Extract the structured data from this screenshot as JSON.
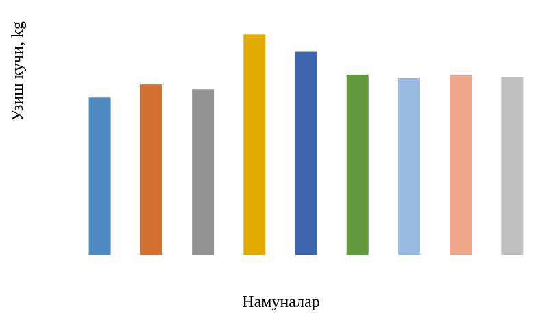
{
  "chart_data": {
    "type": "bar",
    "title": "",
    "xlabel": "Намуналар",
    "ylabel": "Узиш кучи, kg",
    "categories": [
      "",
      "",
      "",
      "",
      "",
      "",
      "",
      "",
      ""
    ],
    "values": [
      227,
      246,
      239,
      318,
      293,
      260,
      255,
      259,
      257
    ],
    "ylim": [
      0,
      340
    ],
    "grid": false,
    "legend": "none",
    "colors": [
      "#4f8ac0",
      "#d57130",
      "#939393",
      "#e4ac00",
      "#3c66ae",
      "#62993f",
      "#98b9e0",
      "#f0a78a",
      "#bfbfbf"
    ]
  }
}
